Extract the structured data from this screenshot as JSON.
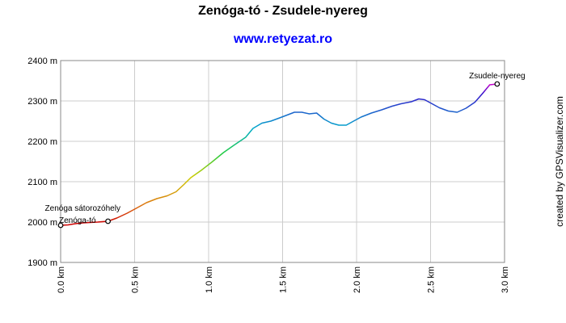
{
  "chart_data": {
    "type": "line",
    "title": "Zenóga-tó - Zsudele-nyereg",
    "subtitle": "www.retyezat.ro",
    "credit": "created by GPSVisualizer.com",
    "xlabel": "",
    "ylabel": "",
    "xlim": [
      0,
      3.0
    ],
    "ylim": [
      1900,
      2400
    ],
    "grid": true,
    "x_ticks": [
      {
        "value": 0.0,
        "label": "0.0 km"
      },
      {
        "value": 0.5,
        "label": "0.5 km"
      },
      {
        "value": 1.0,
        "label": "1.0 km"
      },
      {
        "value": 1.5,
        "label": "1.5 km"
      },
      {
        "value": 2.0,
        "label": "2.0 km"
      },
      {
        "value": 2.5,
        "label": "2.5 km"
      },
      {
        "value": 3.0,
        "label": "3.0 km"
      }
    ],
    "y_ticks": [
      {
        "value": 1900,
        "label": "1900 m"
      },
      {
        "value": 2000,
        "label": "2000 m"
      },
      {
        "value": 2100,
        "label": "2100 m"
      },
      {
        "value": 2200,
        "label": "2200 m"
      },
      {
        "value": 2300,
        "label": "2300 m"
      },
      {
        "value": 2400,
        "label": "2400 m"
      }
    ],
    "series": [
      {
        "x": [
          0.0,
          0.05,
          0.1,
          0.15,
          0.2,
          0.25,
          0.32,
          0.38,
          0.45,
          0.52,
          0.58,
          0.65,
          0.72,
          0.78,
          0.83,
          0.88,
          0.95,
          1.02,
          1.1,
          1.17,
          1.25,
          1.3,
          1.36,
          1.42,
          1.48,
          1.53,
          1.58,
          1.63,
          1.68,
          1.73,
          1.78,
          1.83,
          1.88,
          1.93,
          1.98,
          2.03,
          2.1,
          2.17,
          2.24,
          2.3,
          2.37,
          2.42,
          2.46,
          2.5,
          2.56,
          2.62,
          2.68,
          2.74,
          2.8,
          2.85,
          2.9,
          2.95
        ],
        "y": [
          1992,
          1993,
          1996,
          1998,
          1999,
          2000,
          2002,
          2010,
          2022,
          2036,
          2048,
          2058,
          2065,
          2075,
          2092,
          2110,
          2128,
          2148,
          2172,
          2190,
          2210,
          2232,
          2245,
          2250,
          2258,
          2265,
          2272,
          2272,
          2268,
          2270,
          2255,
          2245,
          2240,
          2240,
          2250,
          2260,
          2270,
          2278,
          2287,
          2293,
          2298,
          2305,
          2303,
          2295,
          2283,
          2275,
          2272,
          2282,
          2297,
          2318,
          2340,
          2342
        ]
      }
    ],
    "markers": [
      {
        "name": "Zenóga-tó",
        "x": 0.0,
        "y": 1992
      },
      {
        "name": "Zenóga sátorozóhely",
        "x": 0.32,
        "y": 2002
      },
      {
        "name": "Zsudele-nyereg",
        "x": 2.95,
        "y": 2342
      }
    ]
  }
}
